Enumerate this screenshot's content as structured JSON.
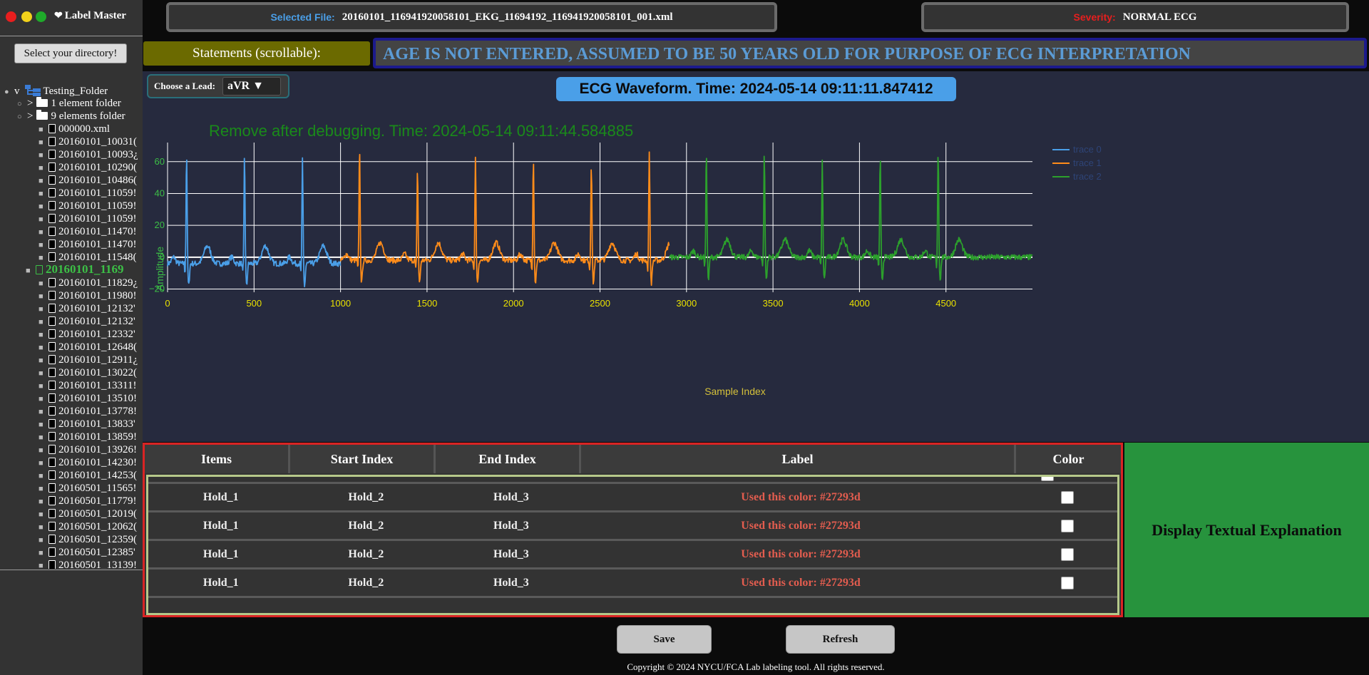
{
  "app": {
    "title": "Label Master"
  },
  "window_controls": {
    "close_color": "#e81e1e",
    "minimize_color": "#f2d21b",
    "maximize_color": "#1faa2a"
  },
  "sidebar": {
    "select_dir_label": "Select your directory!",
    "root_label": "Testing_Folder",
    "root_toggle": "v",
    "folders": [
      {
        "toggle": ">",
        "label": "1 element folder"
      },
      {
        "toggle": ">",
        "label": "9 elements folder"
      }
    ],
    "files": [
      "000000.xml",
      "20160101_10031(",
      "20160101_10093¿",
      "20160101_10290(",
      "20160101_10486(",
      "20160101_11059!",
      "20160101_11059!",
      "20160101_11059!",
      "20160101_11470!",
      "20160101_11470!",
      "20160101_11548(",
      "20160101_1169",
      "20160101_11829¿",
      "20160101_11980!",
      "20160101_12132'",
      "20160101_12132'",
      "20160101_12332'",
      "20160101_12648(",
      "20160101_12911¿",
      "20160101_13022(",
      "20160101_13311!",
      "20160101_13510!",
      "20160101_13778!",
      "20160101_13833'",
      "20160101_13859!",
      "20160101_13926!",
      "20160101_14230!",
      "20160101_14253(",
      "20160501_11565!",
      "20160501_11779!",
      "20160501_12019(",
      "20160501_12062(",
      "20160501_12359(",
      "20160501_12385'",
      "20160501_13139!"
    ],
    "selected_index": 11
  },
  "header": {
    "selected_file_label": "Selected File:",
    "selected_file_value": "20160101_116941920058101_EKG_11694192_116941920058101_001.xml",
    "severity_label": "Severity:",
    "severity_value": "NORMAL ECG",
    "selected_file_label_color": "#4a9fe8",
    "severity_label_color": "#e81e1e"
  },
  "statements": {
    "label": "Statements (scrollable):",
    "text": "AGE IS NOT ENTERED, ASSUMED TO BE 50 YEARS OLD FOR PURPOSE OF ECG INTERPRETATION"
  },
  "lead": {
    "label": "Choose a Lead:",
    "value": "aVR ▼"
  },
  "waveform_title": "ECG Waveform. Time: 2024-05-14 09:11:11.847412",
  "debug_text": "Remove after debugging. Time: 2024-05-14 09:11:44.584885",
  "chart_data": {
    "type": "line",
    "xlabel": "Sample Index",
    "ylabel": "Amplitude",
    "xlim": [
      0,
      5000
    ],
    "ylim": [
      -22,
      72
    ],
    "x_ticks": [
      0,
      500,
      1000,
      1500,
      2000,
      2500,
      3000,
      3500,
      4000,
      4500
    ],
    "y_ticks": [
      -20,
      0,
      20,
      40,
      60
    ],
    "grid": true,
    "legend_position": "top-right",
    "series": [
      {
        "name": "trace 0",
        "color": "#4a9fe8",
        "x_range": [
          0,
          1000
        ],
        "r_peaks": [
          110,
          445,
          780
        ],
        "peak_heights": [
          66,
          65,
          61
        ],
        "baseline": -4
      },
      {
        "name": "trace 1",
        "color": "#ff8c1a",
        "x_range": [
          1000,
          2900
        ],
        "r_peaks": [
          1110,
          1445,
          1780,
          2115,
          2450,
          2785
        ],
        "peak_heights": [
          70,
          57,
          62,
          64,
          60,
          68
        ],
        "baseline": -2
      },
      {
        "name": "trace 2",
        "color": "#2ca02c",
        "x_range": [
          2900,
          5000
        ],
        "r_peaks": [
          3115,
          3450,
          3785,
          4120,
          4455
        ],
        "peak_heights": [
          67,
          66,
          60,
          63,
          67
        ],
        "baseline": 0
      }
    ]
  },
  "table": {
    "headers": [
      "Items",
      "Start Index",
      "End Index",
      "Label",
      "Color"
    ],
    "rows": [
      {
        "items": "Hold_1",
        "start": "Hold_2",
        "end": "Hold_3",
        "label": "Used this color: #27293d"
      },
      {
        "items": "Hold_1",
        "start": "Hold_2",
        "end": "Hold_3",
        "label": "Used this color: #27293d"
      },
      {
        "items": "Hold_1",
        "start": "Hold_2",
        "end": "Hold_3",
        "label": "Used this color: #27293d"
      },
      {
        "items": "Hold_1",
        "start": "Hold_2",
        "end": "Hold_3",
        "label": "Used this color: #27293d"
      }
    ]
  },
  "explanation": {
    "label": "Display Textual Explanation"
  },
  "footer": {
    "save_label": "Save",
    "refresh_label": "Refresh",
    "copyright": "Copyright © 2024 NYCU/FCA Lab labeling tool. All rights reserved."
  }
}
